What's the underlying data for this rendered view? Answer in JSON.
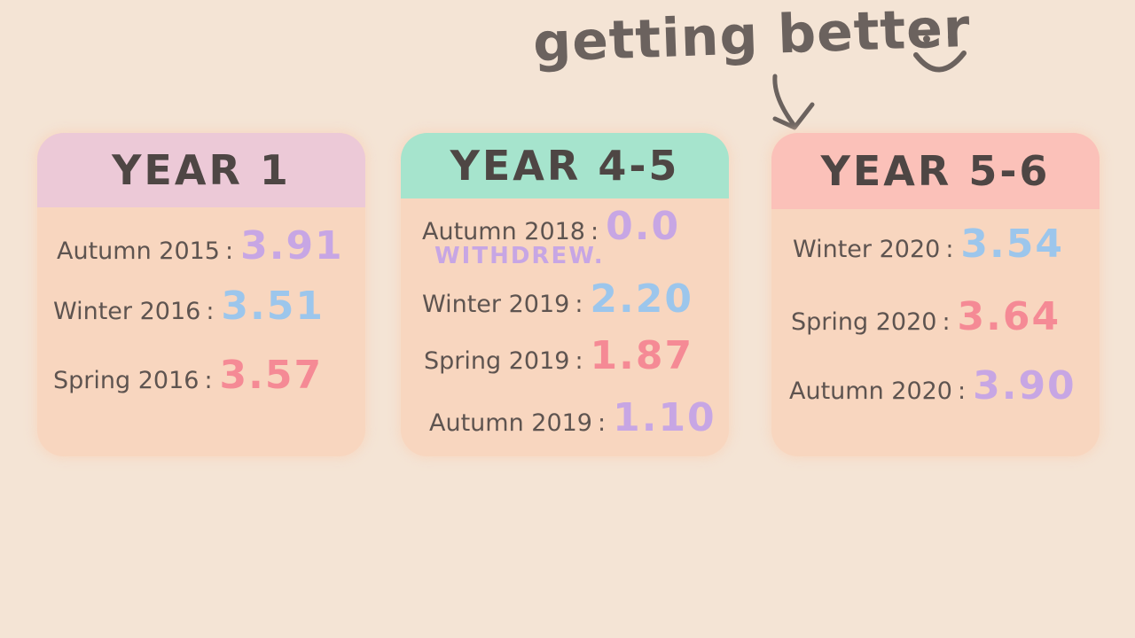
{
  "note": {
    "text": "getting better",
    "smiley": "smiley-face-icon",
    "arrow": "down-arrow-icon"
  },
  "colors": {
    "background": "#f4e4d5",
    "card_body": "#f8d6bf",
    "purple": "#c7a6e4",
    "blue": "#9cc6ec",
    "red": "#f58a95",
    "ink": "#5e5450"
  },
  "cards": [
    {
      "title": "YEAR 1",
      "header_color": "#ecc9d7",
      "rows": [
        {
          "term": "Autumn 2015",
          "gpa": "3.91",
          "color": "purple"
        },
        {
          "term": "Winter 2016",
          "gpa": "3.51",
          "color": "blue"
        },
        {
          "term": "Spring 2016",
          "gpa": "3.57",
          "color": "red"
        }
      ]
    },
    {
      "title": "YEAR 4-5",
      "header_color": "#a6e4cd",
      "rows": [
        {
          "term": "Autumn 2018",
          "gpa": "0.0",
          "color": "purple",
          "remark": "WITHDREW."
        },
        {
          "term": "Winter 2019",
          "gpa": "2.20",
          "color": "blue"
        },
        {
          "term": "Spring 2019",
          "gpa": "1.87",
          "color": "red"
        },
        {
          "term": "Autumn 2019",
          "gpa": "1.10",
          "color": "purple"
        }
      ]
    },
    {
      "title": "YEAR 5-6",
      "header_color": "#fbc1b9",
      "rows": [
        {
          "term": "Winter 2020",
          "gpa": "3.54",
          "color": "blue"
        },
        {
          "term": "Spring 2020",
          "gpa": "3.64",
          "color": "red"
        },
        {
          "term": "Autumn 2020",
          "gpa": "3.90",
          "color": "purple"
        }
      ]
    }
  ]
}
